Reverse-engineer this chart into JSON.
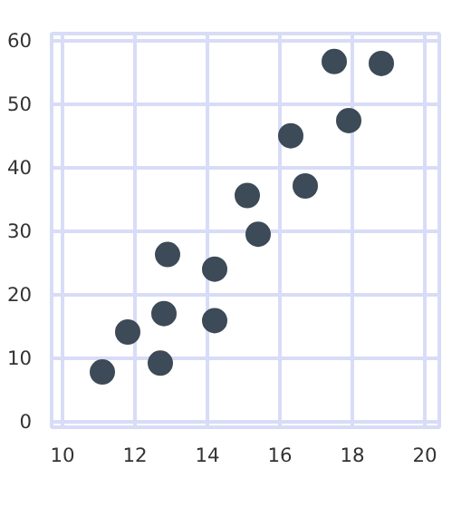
{
  "chart_data": {
    "type": "scatter",
    "marker": "circle",
    "grid": true,
    "x": [
      11.1,
      11.8,
      12.7,
      12.8,
      12.9,
      14.2,
      14.2,
      15.1,
      15.4,
      16.3,
      16.7,
      17.5,
      17.9,
      18.8
    ],
    "series": [
      {
        "color": "#3d4a58",
        "values": [
          7.7,
          14.0,
          9.1,
          16.9,
          26.2,
          15.8,
          23.9,
          35.5,
          29.4,
          44.9,
          37.0,
          56.6,
          47.3,
          56.3
        ]
      }
    ],
    "xlim": [
      9.7,
      20.4
    ],
    "ylim": [
      -1,
      61
    ],
    "xticks": [
      10,
      12,
      14,
      16,
      18,
      20
    ],
    "yticks": [
      0,
      10,
      20,
      30,
      40,
      50,
      60
    ]
  }
}
